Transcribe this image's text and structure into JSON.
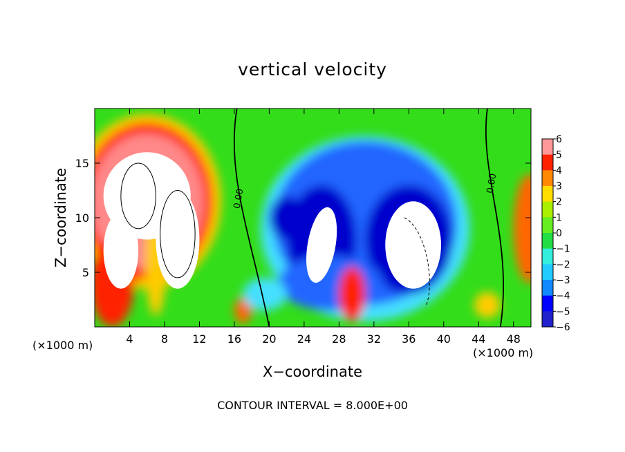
{
  "chart_data": {
    "type": "heatmap",
    "title": "vertical velocity",
    "xlabel": "X−coordinate",
    "ylabel": "Z−coordinate",
    "x_unit": "(×1000 m)",
    "xlim": [
      0,
      50
    ],
    "ylim": [
      0,
      20
    ],
    "x_ticks": [
      4,
      8,
      12,
      16,
      20,
      24,
      28,
      32,
      36,
      40,
      44,
      48
    ],
    "y_ticks": [
      5,
      10,
      15
    ],
    "colorbar": {
      "levels": [
        -6,
        -5,
        -4,
        -3,
        -2,
        -1,
        0,
        1,
        2,
        3,
        4,
        5,
        6
      ],
      "labels": [
        "6",
        "5",
        "4",
        "3",
        "2",
        "1",
        "0",
        "−1",
        "−2",
        "−3",
        "−4",
        "−5",
        "−6"
      ]
    },
    "contour_labels": [
      "0.00",
      "0.00"
    ],
    "footer": "CONTOUR INTERVAL = 8.000E+00",
    "features": [
      {
        "kind": "updraft",
        "x": 5,
        "z": 11,
        "w": 8
      },
      {
        "kind": "updraft",
        "x": 6.5,
        "z": 7,
        "w": 6
      },
      {
        "kind": "updraft",
        "x": 3.5,
        "z": 3,
        "w": 5
      },
      {
        "kind": "updraft",
        "x": 29.5,
        "z": 3,
        "w": 5
      },
      {
        "kind": "updraft",
        "x": 49.5,
        "z": 10,
        "w": 5
      },
      {
        "kind": "downdraft",
        "x": 26,
        "z": 7,
        "w": -8
      },
      {
        "kind": "downdraft",
        "x": 36,
        "z": 7.5,
        "w": -8
      },
      {
        "kind": "downdraft",
        "x": 22,
        "z": 10,
        "w": -4
      },
      {
        "kind": "downdraft",
        "x": 32,
        "z": 13,
        "w": -3
      }
    ]
  }
}
